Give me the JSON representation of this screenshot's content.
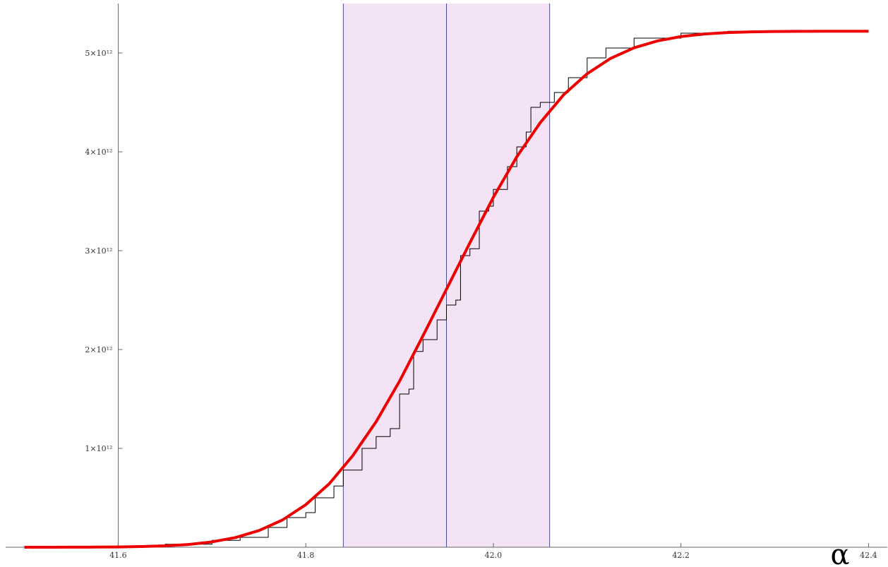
{
  "chart_data": {
    "type": "line",
    "x_label": "α",
    "xlim": [
      41.48,
      42.42
    ],
    "ylim": [
      0,
      5500000000000.0
    ],
    "xticks": [
      41.6,
      41.8,
      {
        "value": 42.0,
        "label": "42.0"
      },
      42.2,
      42.4
    ],
    "yticks": [
      {
        "value": 1000000000000.0,
        "label": "1×10¹²"
      },
      {
        "value": 2000000000000.0,
        "label": "2×10¹²"
      },
      {
        "value": 3000000000000.0,
        "label": "3×10¹²"
      },
      {
        "value": 4000000000000.0,
        "label": "4×10¹²"
      },
      {
        "value": 5000000000000.0,
        "label": "5×10¹²"
      }
    ],
    "band": {
      "range": [
        41.84,
        42.06
      ],
      "center": 41.95,
      "color": "#f3e3f4",
      "line_color": "#4a4a9a"
    },
    "series": [
      {
        "color": "#000000",
        "step": true,
        "width": 1,
        "x": [
          41.5,
          41.6,
          41.65,
          41.7,
          41.73,
          41.76,
          41.78,
          41.8,
          41.81,
          41.83,
          41.84,
          41.86,
          41.875,
          41.89,
          41.9,
          41.91,
          41.915,
          41.925,
          41.94,
          41.95,
          41.96,
          41.965,
          41.975,
          41.985,
          41.995,
          42.0,
          42.015,
          42.025,
          42.035,
          42.04,
          42.05,
          42.065,
          42.08,
          42.1,
          42.12,
          42.15,
          42.2,
          42.25,
          42.4
        ],
        "values": [
          0,
          10000000000.0,
          30000000000.0,
          70000000000.0,
          100000000000.0,
          200000000000.0,
          300000000000.0,
          350000000000.0,
          500000000000.0,
          620000000000.0,
          780000000000.0,
          1000000000000.0,
          1120000000000.0,
          1200000000000.0,
          1550000000000.0,
          1600000000000.0,
          1980000000000.0,
          2100000000000.0,
          2300000000000.0,
          2450000000000.0,
          2500000000000.0,
          2950000000000.0,
          3020000000000.0,
          3400000000000.0,
          3450000000000.0,
          3620000000000.0,
          3850000000000.0,
          4050000000000.0,
          4200000000000.0,
          4450000000000.0,
          4500000000000.0,
          4600000000000.0,
          4750000000000.0,
          4950000000000.0,
          5050000000000.0,
          5150000000000.0,
          5200000000000.0,
          5220000000000.0,
          5220000000000.0
        ]
      },
      {
        "color": "#ee0000",
        "step": false,
        "width": 4,
        "x": [
          41.5,
          41.525,
          41.55,
          41.575,
          41.6,
          41.625,
          41.65,
          41.675,
          41.7,
          41.725,
          41.75,
          41.775,
          41.8,
          41.825,
          41.85,
          41.875,
          41.9,
          41.925,
          41.95,
          41.975,
          42.0,
          42.025,
          42.05,
          42.075,
          42.1,
          42.125,
          42.15,
          42.175,
          42.2,
          42.225,
          42.25,
          42.275,
          42.3,
          42.325,
          42.35,
          42.375,
          42.4
        ],
        "values": [
          100000000.0,
          200000000.0,
          600000000.0,
          1400000000.0,
          3100000000.0,
          6800000000.0,
          14000000000.0,
          28000000000.0,
          54000000000.0,
          98000000000.0,
          168000000000.0,
          275000000000.0,
          430000000000.0,
          642000000000.0,
          925000000000.0,
          1270000000000.0,
          1680000000000.0,
          2140000000000.0,
          2610000000000.0,
          3080000000000.0,
          3540000000000.0,
          3950000000000.0,
          4295000000000.0,
          4578000000000.0,
          4790000000000.0,
          4945000000000.0,
          5052000000000.0,
          5122000000000.0,
          5166000000000.0,
          5192000000000.0,
          5206000000000.0,
          5213600000000.0,
          5216900000000.0,
          5218600000000.0,
          5219400000000.0,
          5219900000000.0,
          5220000000000.0
        ]
      }
    ]
  }
}
